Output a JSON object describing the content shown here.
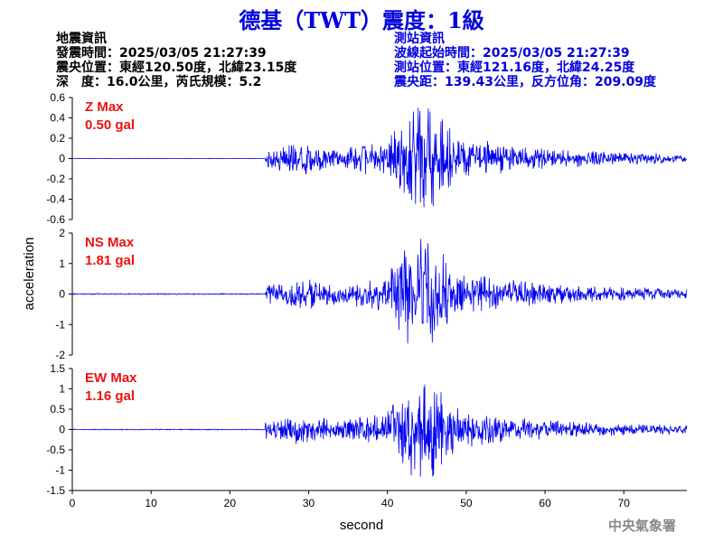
{
  "header": {
    "title": "德基（TWT）震度：1級"
  },
  "quake_info": {
    "heading": "地震資訊",
    "origin_time": "發震時間：2025/03/05 21:27:39",
    "epicenter": "震央位置：東經120.50度，北緯23.15度",
    "depth_magnitude": "深　度：16.0公里，芮氏規模：5.2"
  },
  "station_info": {
    "heading": "測站資訊",
    "wave_onset": "波線起始時間：2025/03/05 21:27:39",
    "station_location": "測站位置：東經121.16度，北緯24.25度",
    "distance_azimuth": "震央距：139.43公里，反方位角：209.09度"
  },
  "footer": {
    "agency": "中央氣象署"
  },
  "colors": {
    "trace": "#0000ee",
    "max_label": "#ee1111",
    "title": "#0000dd"
  },
  "chart_data": {
    "type": "line",
    "xlabel": "second",
    "ylabel": "acceleration",
    "xlim": [
      0,
      78
    ],
    "xticks": [
      0,
      10,
      20,
      30,
      40,
      50,
      60,
      70
    ],
    "p_arrival": 24.5,
    "strong_window": [
      40,
      50
    ],
    "strong_peak_time": 44.5,
    "grid": false,
    "panels": [
      {
        "component": "Z",
        "max_label": "Z Max",
        "max_value": "0.50 gal",
        "ylim": [
          -0.6,
          0.6
        ],
        "yticks": [
          "0.6",
          "0.4",
          "0.2",
          "0",
          "-0.2",
          "-0.4",
          "-0.6"
        ],
        "ytick_values": [
          0.6,
          0.4,
          0.2,
          0,
          -0.2,
          -0.4,
          -0.6
        ],
        "peak_abs": 0.5,
        "noise": 0.004,
        "seed": 7
      },
      {
        "component": "NS",
        "max_label": "NS Max",
        "max_value": "1.81 gal",
        "ylim": [
          -2,
          2
        ],
        "yticks": [
          "2",
          "1",
          "0",
          "-1",
          "-2"
        ],
        "ytick_values": [
          2,
          1,
          0,
          -1,
          -2
        ],
        "peak_abs": 1.81,
        "noise": 0.01,
        "seed": 13
      },
      {
        "component": "EW",
        "max_label": "EW Max",
        "max_value": "1.16 gal",
        "ylim": [
          -1.5,
          1.5
        ],
        "yticks": [
          "1.5",
          "1",
          "0.5",
          "0",
          "-0.5",
          "-1",
          "-1.5"
        ],
        "ytick_values": [
          1.5,
          1,
          0.5,
          0,
          -0.5,
          -1,
          -1.5
        ],
        "peak_abs": 1.16,
        "noise": 0.01,
        "seed": 29
      }
    ]
  }
}
